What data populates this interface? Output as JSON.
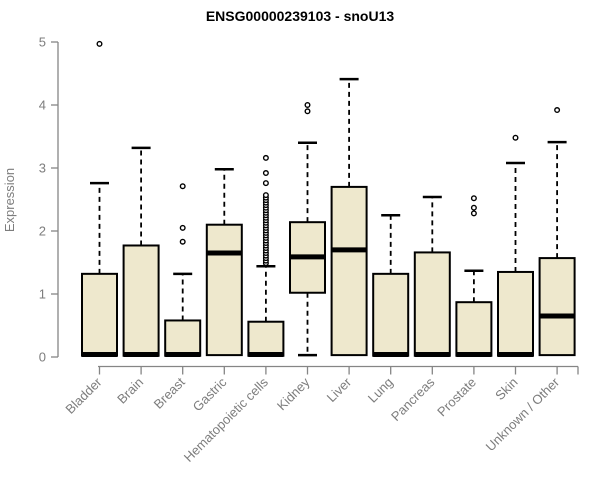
{
  "title": "ENSG00000239103 - snoU13",
  "colors": {
    "box_fill": "#EEE8CD",
    "box_stroke": "#000000",
    "median": "#000000",
    "whisker": "#000000",
    "axis": "#858585",
    "tick_label": "#7d7d7d",
    "title": "#000000",
    "background": "#ffffff"
  },
  "chart_data": {
    "type": "boxplot",
    "title": "ENSG00000239103 - snoU13",
    "xlabel": "",
    "ylabel": "Expression",
    "ylim": [
      0,
      5
    ],
    "yticks": [
      0,
      1,
      2,
      3,
      4,
      5
    ],
    "grid": false,
    "legend": "none",
    "categories": [
      "Bladder",
      "Brain",
      "Breast",
      "Gastric",
      "Hematopoietic cells",
      "Kidney",
      "Liver",
      "Lung",
      "Pancreas",
      "Prostate",
      "Skin",
      "Unknown / Other"
    ],
    "series": [
      {
        "name": "Bladder",
        "min": 0.02,
        "q1": 0.02,
        "median": 0.04,
        "q3": 1.32,
        "max": 2.76,
        "outliers": [
          4.97
        ]
      },
      {
        "name": "Brain",
        "min": 0.02,
        "q1": 0.02,
        "median": 0.04,
        "q3": 1.77,
        "max": 3.32,
        "outliers": []
      },
      {
        "name": "Breast",
        "min": 0.02,
        "q1": 0.02,
        "median": 0.04,
        "q3": 0.58,
        "max": 1.32,
        "outliers": [
          1.83,
          2.05,
          2.71
        ]
      },
      {
        "name": "Gastric",
        "min": 0.03,
        "q1": 0.03,
        "median": 1.65,
        "q3": 2.1,
        "max": 2.98,
        "outliers": []
      },
      {
        "name": "Hematopoietic cells",
        "min": 0.02,
        "q1": 0.02,
        "median": 0.04,
        "q3": 0.56,
        "max": 1.44,
        "outliers": [
          1.49,
          1.53,
          1.57,
          1.61,
          1.65,
          1.69,
          1.73,
          1.77,
          1.81,
          1.85,
          1.89,
          1.93,
          1.97,
          2.01,
          2.05,
          2.09,
          2.13,
          2.17,
          2.21,
          2.25,
          2.29,
          2.33,
          2.37,
          2.41,
          2.45,
          2.49,
          2.53,
          2.57,
          2.76,
          2.92,
          3.16
        ]
      },
      {
        "name": "Kidney",
        "min": 0.03,
        "q1": 1.02,
        "median": 1.59,
        "q3": 2.14,
        "max": 3.4,
        "outliers": [
          3.9,
          4.0
        ]
      },
      {
        "name": "Liver",
        "min": 0.03,
        "q1": 0.03,
        "median": 1.7,
        "q3": 2.7,
        "max": 4.41,
        "outliers": []
      },
      {
        "name": "Lung",
        "min": 0.02,
        "q1": 0.02,
        "median": 0.04,
        "q3": 1.32,
        "max": 2.25,
        "outliers": []
      },
      {
        "name": "Pancreas",
        "min": 0.02,
        "q1": 0.02,
        "median": 0.04,
        "q3": 1.66,
        "max": 2.54,
        "outliers": []
      },
      {
        "name": "Prostate",
        "min": 0.02,
        "q1": 0.02,
        "median": 0.04,
        "q3": 0.87,
        "max": 1.37,
        "outliers": [
          2.28,
          2.37,
          2.52
        ]
      },
      {
        "name": "Skin",
        "min": 0.02,
        "q1": 0.02,
        "median": 0.04,
        "q3": 1.35,
        "max": 3.08,
        "outliers": [
          3.48
        ]
      },
      {
        "name": "Unknown / Other",
        "min": 0.03,
        "q1": 0.03,
        "median": 0.65,
        "q3": 1.57,
        "max": 3.41,
        "outliers": [
          3.92
        ]
      }
    ]
  }
}
